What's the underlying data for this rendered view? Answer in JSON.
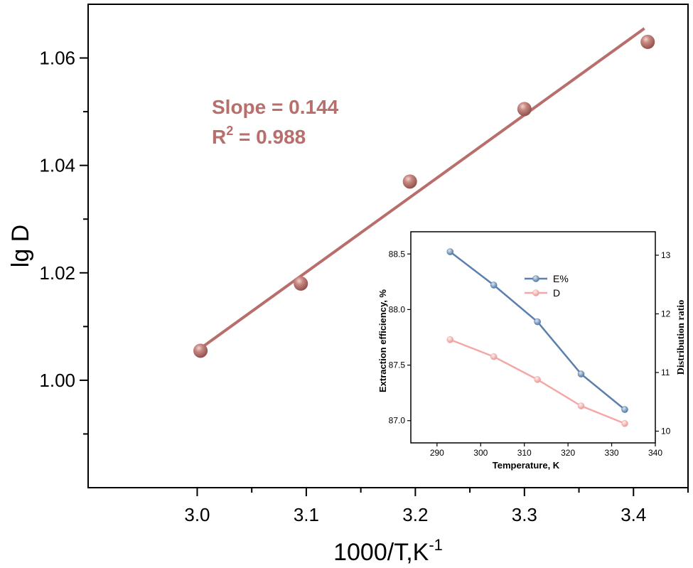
{
  "chart_data": [
    {
      "type": "scatter",
      "title": "",
      "xlabel": "1000/T,K",
      "xlabel_sup": "-1",
      "ylabel": "lg D",
      "xlim": [
        2.9,
        3.45
      ],
      "ylim": [
        0.98,
        1.07
      ],
      "xticks": [
        "3.0",
        "3.1",
        "3.2",
        "3.3",
        "3.4"
      ],
      "xtick_values": [
        3.0,
        3.1,
        3.2,
        3.3,
        3.4
      ],
      "yticks": [
        "1.00",
        "1.02",
        "1.04",
        "1.06"
      ],
      "ytick_values": [
        1.0,
        1.02,
        1.04,
        1.06
      ],
      "points": [
        {
          "x": 3.003,
          "y": 1.0055
        },
        {
          "x": 3.095,
          "y": 1.018
        },
        {
          "x": 3.195,
          "y": 1.037
        },
        {
          "x": 3.3,
          "y": 1.0505
        },
        {
          "x": 3.413,
          "y": 1.063
        }
      ],
      "fit_line": {
        "x": [
          3.0,
          3.41
        ],
        "y": [
          1.0055,
          1.0655
        ]
      },
      "color": "#B86E6A",
      "annotations": {
        "slope": "Slope = 0.144",
        "r2_prefix": "R",
        "r2_sup": "2",
        "r2_value": " = 0.988"
      }
    },
    {
      "type": "line",
      "title": "",
      "xlabel": "Temperature, K",
      "ylabel_left": "Extraction efficiency, %",
      "ylabel_right": "Distribution ratio",
      "xlim": [
        284,
        340
      ],
      "ylim_left": [
        86.8,
        88.7
      ],
      "ylim_right": [
        9.8,
        13.4
      ],
      "xticks": [
        "290",
        "300",
        "310",
        "320",
        "330",
        "340"
      ],
      "xtick_values": [
        290,
        300,
        310,
        320,
        330,
        340
      ],
      "yticks_left": [
        "87.0",
        "87.5",
        "88.0",
        "88.5"
      ],
      "ytick_values_left": [
        87.0,
        87.5,
        88.0,
        88.5
      ],
      "yticks_right": [
        "10",
        "11",
        "12",
        "13"
      ],
      "ytick_values_right": [
        10,
        11,
        12,
        13
      ],
      "x": [
        293,
        303,
        313,
        323,
        333
      ],
      "series": [
        {
          "name": "E%",
          "axis": "left",
          "color": "#5B80AE",
          "values": [
            88.52,
            88.22,
            87.89,
            87.42,
            87.1
          ]
        },
        {
          "name": "D",
          "axis": "right",
          "color": "#F4A8A6",
          "values": [
            11.56,
            11.27,
            10.88,
            10.43,
            10.13
          ]
        }
      ],
      "legend": "top-center"
    }
  ]
}
